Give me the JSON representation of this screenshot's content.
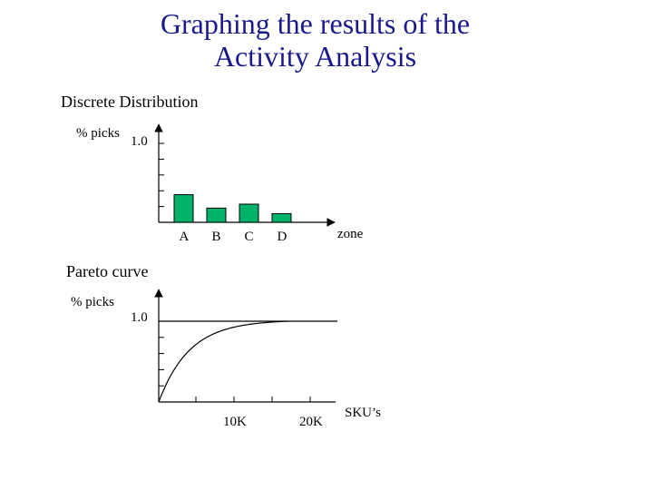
{
  "page": {
    "title_line1": "Graphing the results of the",
    "title_line2": "Activity Analysis"
  },
  "colors": {
    "title": "#1a1a8c",
    "bars": "#00b36b"
  },
  "chart_data": [
    {
      "type": "bar",
      "title": "Discrete Distribution",
      "ylabel": "% picks",
      "xlabel": "zone",
      "y_tick_label": "1.0",
      "ylim": [
        0,
        1.0
      ],
      "categories": [
        "A",
        "B",
        "C",
        "D"
      ],
      "values": [
        0.35,
        0.18,
        0.23,
        0.11
      ]
    },
    {
      "type": "line",
      "title": "Pareto curve",
      "ylabel": "% picks",
      "xlabel": "SKU’s",
      "y_tick_label": "1.0",
      "ylim": [
        0,
        1.0
      ],
      "x_tick_labels": [
        "10K",
        "20K"
      ],
      "reference_line": 1.0,
      "curve": "saturating (concave, approaching 1.0)"
    }
  ]
}
